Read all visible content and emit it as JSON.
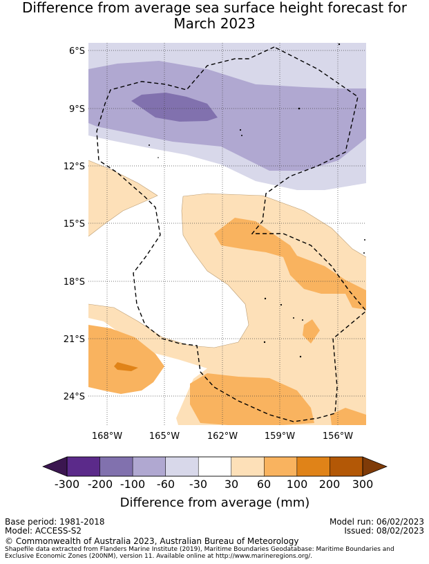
{
  "title": {
    "line1": "Difference from average sea surface height forecast for",
    "line2": "March 2023"
  },
  "map": {
    "lat_ticks": [
      "6°S",
      "9°S",
      "12°S",
      "15°S",
      "18°S",
      "21°S",
      "24°S"
    ],
    "lon_ticks": [
      "168°W",
      "165°W",
      "162°W",
      "159°W",
      "156°W"
    ],
    "eez_boundary_style": "dashed-black",
    "gridlines": "dotted"
  },
  "colorbar": {
    "labels": [
      "-300",
      "-200",
      "-100",
      "-60",
      "-30",
      "30",
      "60",
      "100",
      "200",
      "300"
    ],
    "colors": [
      "#3b1650",
      "#5b2a8a",
      "#8171ae",
      "#b0a8d1",
      "#d8d8ea",
      "#ffffff",
      "#fde0b8",
      "#f9b35f",
      "#e08318",
      "#b35806",
      "#7f3b08"
    ],
    "title": "Difference from average (mm)"
  },
  "footer": {
    "base_period": "Base period: 1981-2018",
    "model": "Model: ACCESS-S2",
    "model_run": "Model run: 06/02/2023",
    "issued": "Issued: 08/02/2023",
    "copyright": "© Commonwealth of Australia 2023, Australian Bureau of Meteorology",
    "shapefile_line1": "Shapefile data extracted from Flanders Marine Institute (2019), Maritime Boundaries Geodatabase: Maritime Boundaries and",
    "shapefile_line2": "Exclusive Economic Zones (200NM), version 11. Available online at http://www.marineregions.org/."
  }
}
